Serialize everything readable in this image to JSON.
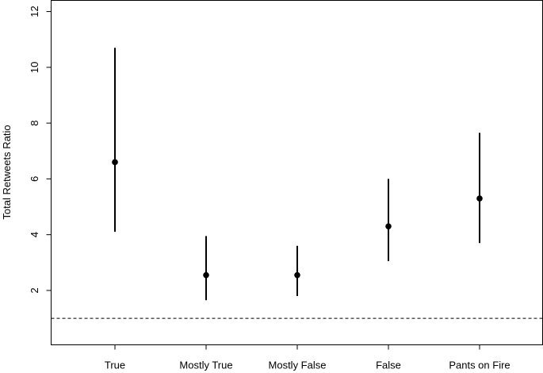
{
  "chart_data": {
    "type": "scatter",
    "categories": [
      "True",
      "Mostly True",
      "Mostly False",
      "False",
      "Pants on Fire"
    ],
    "points": [
      {
        "category": "True",
        "value": 6.6,
        "lower": 4.1,
        "upper": 10.7
      },
      {
        "category": "Mostly True",
        "value": 2.55,
        "lower": 1.65,
        "upper": 3.95
      },
      {
        "category": "Mostly False",
        "value": 2.55,
        "lower": 1.8,
        "upper": 3.6
      },
      {
        "category": "False",
        "value": 4.3,
        "lower": 3.05,
        "upper": 6.0
      },
      {
        "category": "Pants on Fire",
        "value": 5.3,
        "lower": 3.7,
        "upper": 7.65
      }
    ],
    "reference_line": {
      "value": 1,
      "style": "dashed"
    },
    "title": "",
    "xlabel": "",
    "ylabel": "Total Retweets Ratio",
    "ylim": [
      0.05,
      12.4
    ],
    "yticks": [
      2,
      4,
      6,
      8,
      10,
      12
    ],
    "grid": false
  }
}
